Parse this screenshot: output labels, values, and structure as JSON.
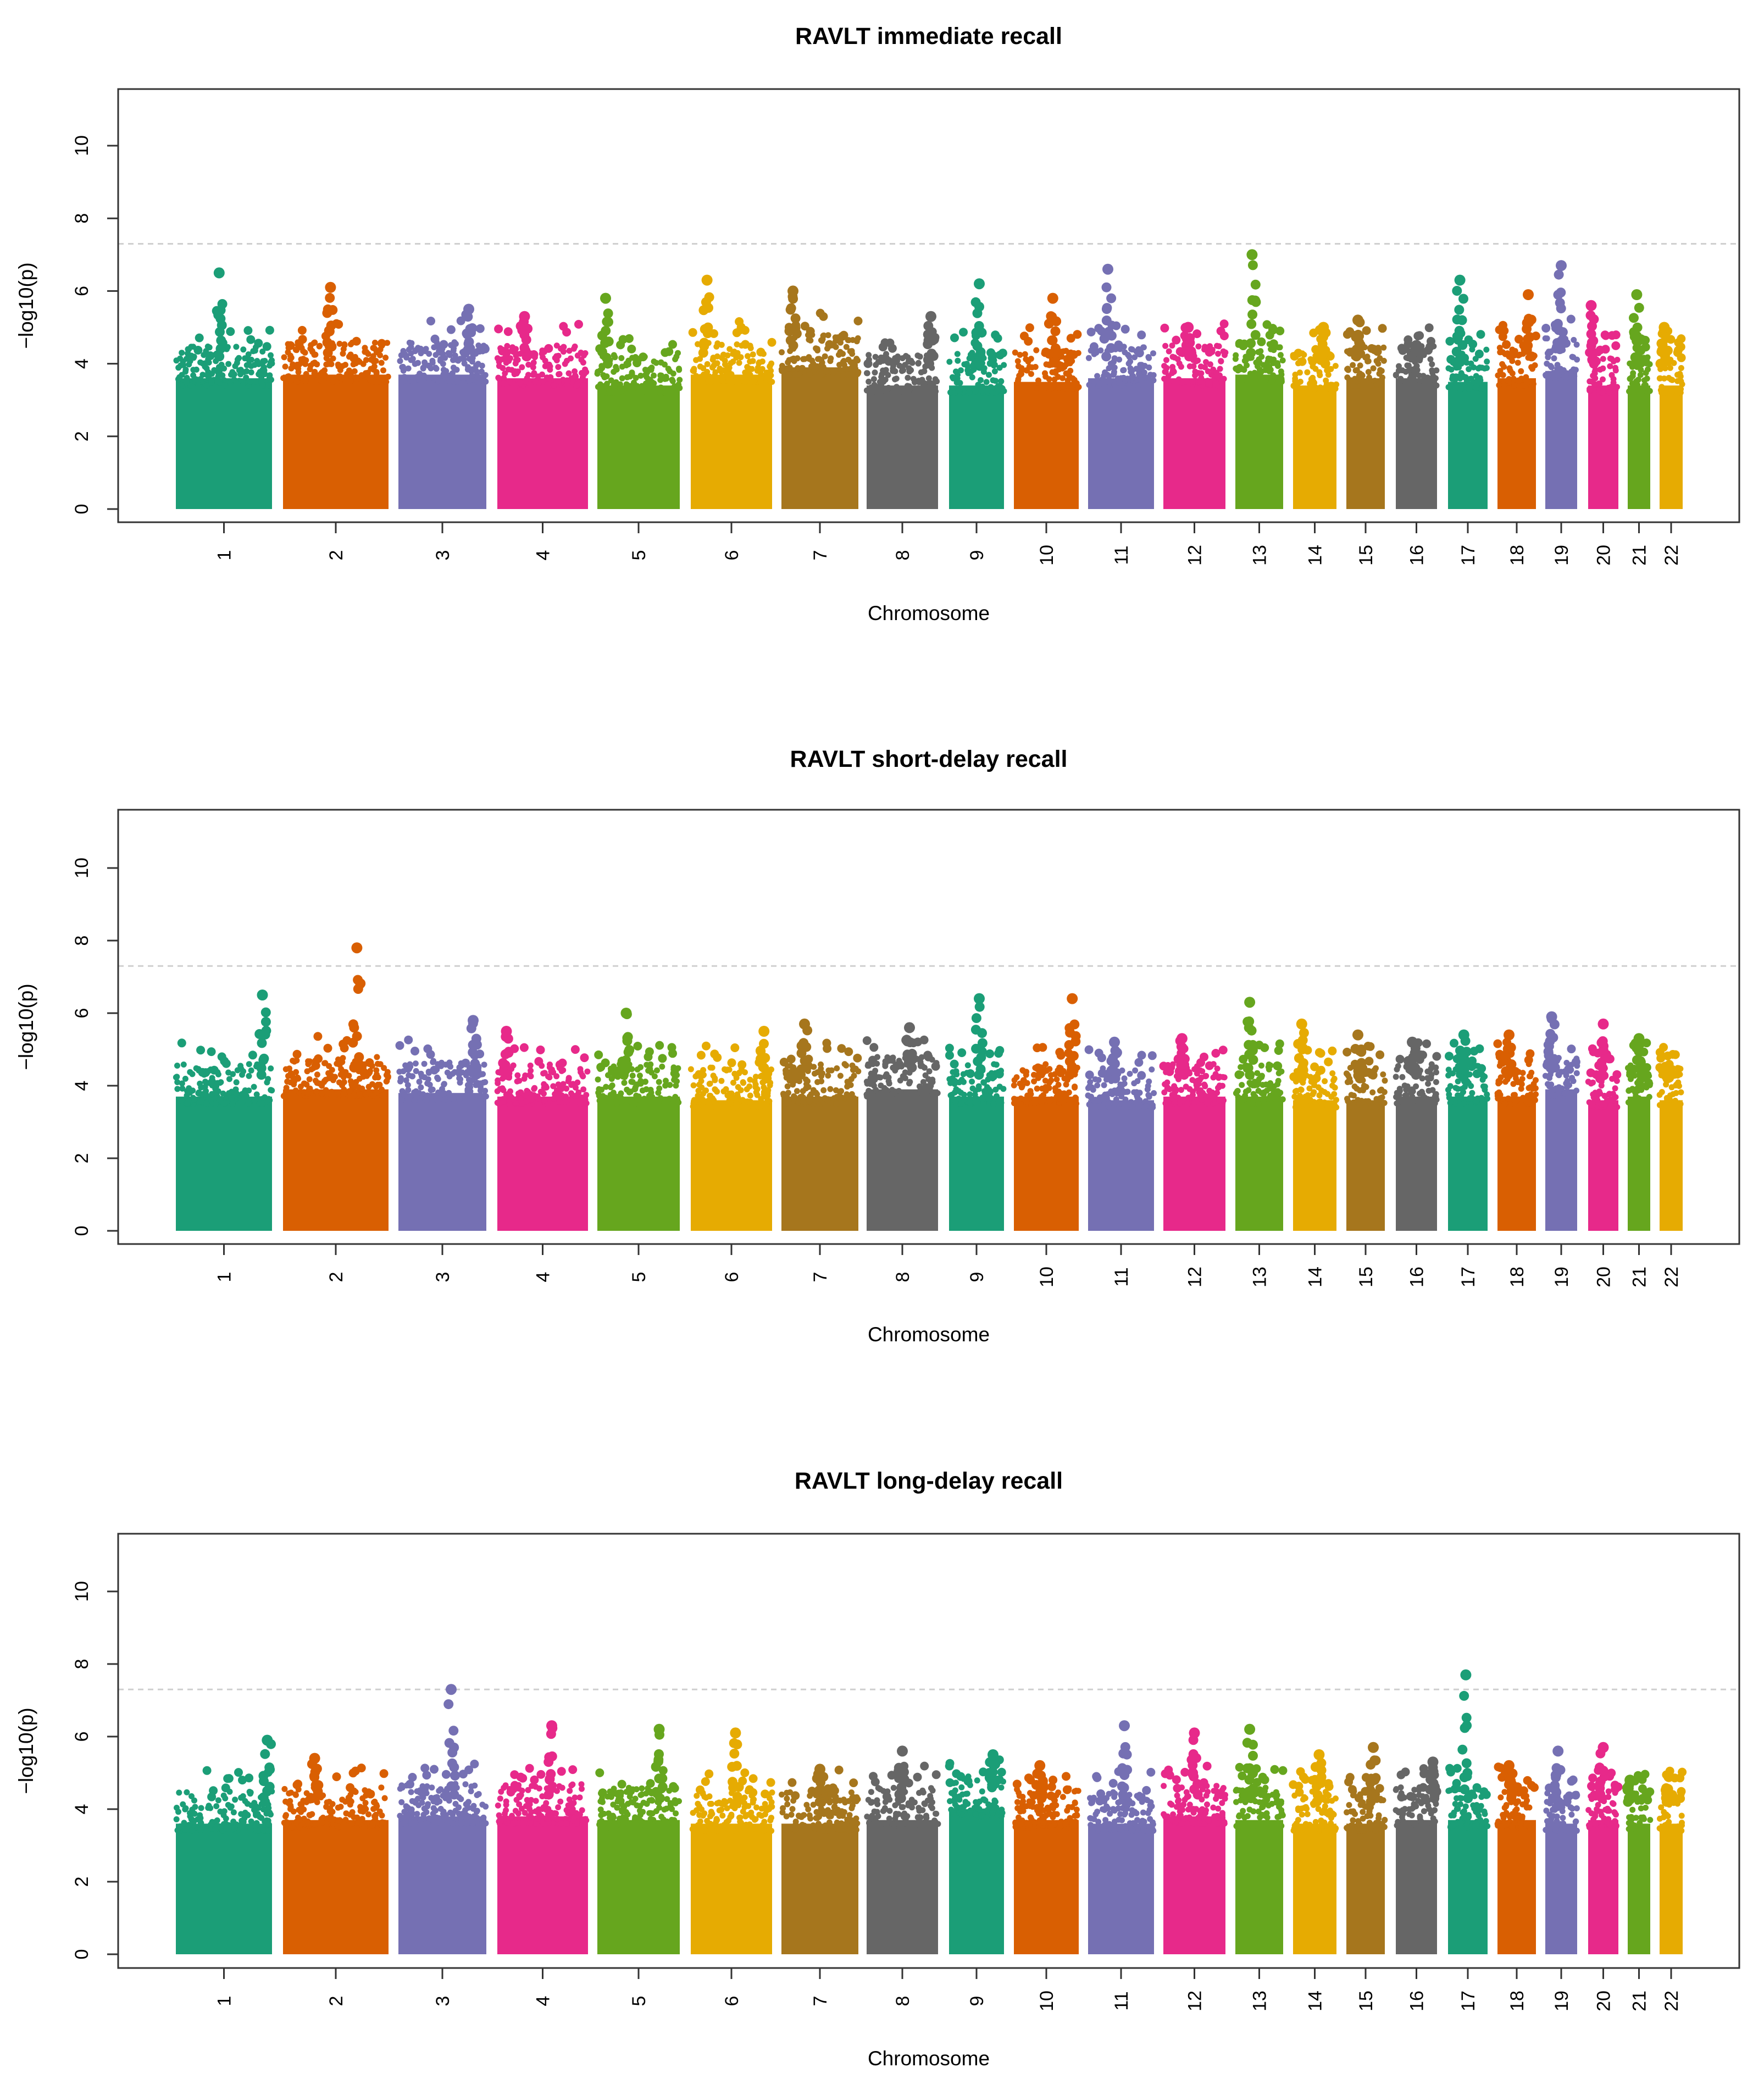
{
  "chart_data": [
    {
      "type": "scatter",
      "subtype": "manhattan",
      "title": "RAVLT immediate recall",
      "xlabel": "Chromosome",
      "ylabel": "−log10(p)",
      "ylim": [
        0,
        11
      ],
      "yticks": [
        0,
        2,
        4,
        6,
        8,
        10
      ],
      "significance_threshold": 7.3,
      "chromosomes": [
        "1",
        "2",
        "3",
        "4",
        "5",
        "6",
        "7",
        "8",
        "9",
        "10",
        "11",
        "12",
        "13",
        "14",
        "15",
        "16",
        "17",
        "18",
        "19",
        "20",
        "21",
        "22"
      ],
      "bulk_max": [
        4.2,
        4.3,
        4.3,
        4.2,
        4.0,
        4.3,
        4.5,
        4.0,
        4.0,
        4.1,
        4.2,
        4.2,
        4.3,
        4.0,
        4.2,
        4.2,
        4.1,
        4.2,
        4.4,
        4.0,
        4.0,
        4.0
      ],
      "peaks": [
        [
          6.5,
          0.45
        ],
        [
          6.1,
          0.45
        ],
        [
          5.5,
          0.8
        ],
        [
          5.3,
          0.3
        ],
        [
          5.8,
          0.1
        ],
        [
          6.3,
          0.2
        ],
        [
          6.0,
          0.15
        ],
        [
          5.3,
          0.9
        ],
        [
          6.2,
          0.55
        ],
        [
          5.8,
          0.6
        ],
        [
          6.6,
          0.3
        ],
        [
          5.0,
          0.4
        ],
        [
          7.0,
          0.35
        ],
        [
          5.0,
          0.7
        ],
        [
          5.2,
          0.3
        ],
        [
          4.5,
          0.5
        ],
        [
          6.3,
          0.3
        ],
        [
          5.9,
          0.8
        ],
        [
          6.7,
          0.5
        ],
        [
          5.6,
          0.1
        ],
        [
          5.9,
          0.4
        ],
        [
          5.0,
          0.2
        ]
      ]
    },
    {
      "type": "scatter",
      "subtype": "manhattan",
      "title": "RAVLT short-delay recall",
      "xlabel": "Chromosome",
      "ylabel": "−log10(p)",
      "ylim": [
        0,
        11
      ],
      "yticks": [
        0,
        2,
        4,
        6,
        8,
        10
      ],
      "significance_threshold": 7.3,
      "chromosomes": [
        "1",
        "2",
        "3",
        "4",
        "5",
        "6",
        "7",
        "8",
        "9",
        "10",
        "11",
        "12",
        "13",
        "14",
        "15",
        "16",
        "17",
        "18",
        "19",
        "20",
        "21",
        "22"
      ],
      "bulk_max": [
        4.3,
        4.5,
        4.4,
        4.3,
        4.3,
        4.2,
        4.3,
        4.5,
        4.3,
        4.3,
        4.2,
        4.3,
        4.3,
        4.2,
        4.2,
        4.3,
        4.3,
        4.3,
        4.5,
        4.2,
        4.3,
        4.2
      ],
      "peaks": [
        [
          6.5,
          0.9
        ],
        [
          7.8,
          0.7
        ],
        [
          5.8,
          0.85
        ],
        [
          5.5,
          0.1
        ],
        [
          6.0,
          0.35
        ],
        [
          5.5,
          0.9
        ],
        [
          5.7,
          0.3
        ],
        [
          5.6,
          0.6
        ],
        [
          6.4,
          0.55
        ],
        [
          6.4,
          0.9
        ],
        [
          5.2,
          0.4
        ],
        [
          5.3,
          0.3
        ],
        [
          6.3,
          0.3
        ],
        [
          5.7,
          0.2
        ],
        [
          5.4,
          0.3
        ],
        [
          5.2,
          0.4
        ],
        [
          5.4,
          0.4
        ],
        [
          5.4,
          0.3
        ],
        [
          5.9,
          0.2
        ],
        [
          5.7,
          0.5
        ],
        [
          5.3,
          0.5
        ],
        [
          4.5,
          0.3
        ]
      ]
    },
    {
      "type": "scatter",
      "subtype": "manhattan",
      "title": "RAVLT long-delay recall",
      "xlabel": "Chromosome",
      "ylabel": "−log10(p)",
      "ylim": [
        0,
        11
      ],
      "yticks": [
        0,
        2,
        4,
        6,
        8,
        10
      ],
      "significance_threshold": 7.3,
      "chromosomes": [
        "1",
        "2",
        "3",
        "4",
        "5",
        "6",
        "7",
        "8",
        "9",
        "10",
        "11",
        "12",
        "13",
        "14",
        "15",
        "16",
        "17",
        "18",
        "19",
        "20",
        "21",
        "22"
      ],
      "bulk_max": [
        4.2,
        4.3,
        4.4,
        4.4,
        4.3,
        4.2,
        4.2,
        4.3,
        4.6,
        4.3,
        4.2,
        4.4,
        4.3,
        4.2,
        4.2,
        4.3,
        4.3,
        4.3,
        4.2,
        4.3,
        4.2,
        4.2
      ],
      "peaks": [
        [
          5.9,
          0.95
        ],
        [
          5.4,
          0.3
        ],
        [
          7.3,
          0.6
        ],
        [
          6.3,
          0.6
        ],
        [
          6.2,
          0.75
        ],
        [
          6.1,
          0.55
        ],
        [
          5.1,
          0.5
        ],
        [
          5.6,
          0.5
        ],
        [
          5.5,
          0.8
        ],
        [
          5.2,
          0.4
        ],
        [
          6.3,
          0.55
        ],
        [
          6.1,
          0.5
        ],
        [
          6.2,
          0.3
        ],
        [
          5.5,
          0.6
        ],
        [
          5.7,
          0.7
        ],
        [
          5.3,
          0.9
        ],
        [
          7.7,
          0.45
        ],
        [
          5.2,
          0.3
        ],
        [
          5.6,
          0.4
        ],
        [
          5.7,
          0.5
        ],
        [
          4.8,
          0.1
        ],
        [
          4.9,
          0.4
        ]
      ]
    }
  ],
  "palette": [
    "#1b9e77",
    "#d95f02",
    "#7570b3",
    "#e7298a",
    "#66a61e",
    "#e6ab02",
    "#a6761d",
    "#666666"
  ]
}
